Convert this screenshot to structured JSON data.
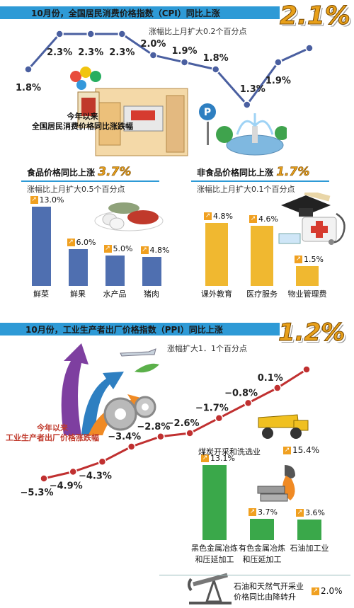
{
  "colors": {
    "banner": "#2e9ad6",
    "cpi_line": "#4a5fa0",
    "ppi_line": "#c03030",
    "food_bar": "#4f6fb0",
    "nonfood_bar": "#f0b830",
    "ind_bar": "#3aa84a",
    "big_number": "#e8a01a"
  },
  "cpi": {
    "title": "10月份，全国居民消费价格指数（CPI）同比上涨",
    "value": "2.1%",
    "subtitle": "涨幅比上月扩大0.2个百分点",
    "note": "今年以来\n全国居民消费价格同比涨跌幅"
  },
  "food": {
    "title": "食品价格同比上涨",
    "value": "3.7%",
    "subtitle": "涨幅比上月扩大0.5个百分点"
  },
  "nonfood": {
    "title": "非食品价格同比上涨",
    "value": "1.7%",
    "subtitle": "涨幅比上月扩大0.1个百分点"
  },
  "ppi": {
    "title": "10月份，工业生产者出厂价格指数（PPI）同比上涨",
    "value": "1.2%",
    "subtitle": "涨幅扩大1．1个百分点",
    "note": "今年以来\n工业生产者出厂价格涨跌幅"
  },
  "oil_gas": {
    "label": "石油和天然气开采业\n价格同比由降转升",
    "value": "2.0%"
  },
  "chart_data": [
    {
      "type": "line",
      "name": "cpi_trend",
      "values": [
        1.8,
        2.3,
        2.3,
        2.3,
        2.0,
        1.9,
        1.8,
        1.3,
        1.9,
        2.1
      ],
      "labels": [
        "1.8%",
        "2.3%",
        "2.3%",
        "2.3%",
        "2.0%",
        "1.9%",
        "1.8%",
        "1.3%",
        "1.9%",
        ""
      ]
    },
    {
      "type": "bar",
      "name": "food_prices",
      "categories": [
        "鲜菜",
        "鲜果",
        "水产品",
        "猪肉"
      ],
      "values": [
        13.0,
        6.0,
        5.0,
        4.8
      ],
      "labels": [
        "13.0%",
        "6.0%",
        "5.0%",
        "4.8%"
      ]
    },
    {
      "type": "bar",
      "name": "nonfood_prices",
      "categories": [
        "课外教育",
        "医疗服务",
        "物业管理费"
      ],
      "values": [
        4.8,
        4.6,
        1.5
      ],
      "labels": [
        "4.8%",
        "4.6%",
        "1.5%"
      ]
    },
    {
      "type": "line",
      "name": "ppi_trend",
      "values": [
        -5.3,
        -4.9,
        -4.3,
        -3.4,
        -2.8,
        -2.6,
        -1.7,
        -0.8,
        0.1,
        1.2
      ],
      "labels": [
        "−5.3%",
        "−4.9%",
        "−4.3%",
        "−3.4%",
        "−2.8%",
        "−2.6%",
        "−1.7%",
        "−0.8%",
        "0.1%",
        ""
      ]
    },
    {
      "type": "bar",
      "name": "industry_prices",
      "categories": [
        "黑色金属冶炼\n和压延加工",
        "有色金属冶炼\n和压延加工",
        "石油加工业"
      ],
      "values": [
        13.1,
        3.7,
        3.6
      ],
      "labels": [
        "13.1%",
        "3.7%",
        "3.6%"
      ],
      "extra": {
        "label": "煤炭开采和洗选业",
        "value": "15.4%"
      }
    }
  ]
}
